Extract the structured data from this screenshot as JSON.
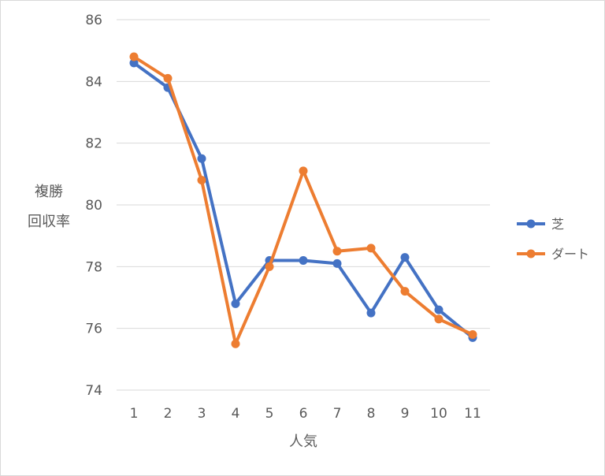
{
  "chart_data": {
    "type": "line",
    "xlabel": "人気",
    "ylabel_lines": [
      "複勝",
      "回収率"
    ],
    "x": [
      "1",
      "2",
      "3",
      "4",
      "5",
      "6",
      "7",
      "8",
      "9",
      "10",
      "11"
    ],
    "ylim": [
      74,
      86
    ],
    "yticks": [
      74,
      76,
      78,
      80,
      82,
      84,
      86
    ],
    "grid": true,
    "legend_position": "right",
    "series": [
      {
        "name": "芝",
        "color": "#4472C4",
        "values": [
          84.6,
          83.8,
          81.5,
          76.8,
          78.2,
          78.2,
          78.1,
          76.5,
          78.3,
          76.6,
          75.7
        ]
      },
      {
        "name": "ダート",
        "color": "#ED7D31",
        "values": [
          84.8,
          84.1,
          80.8,
          75.5,
          78.0,
          81.1,
          78.5,
          78.6,
          77.2,
          76.3,
          75.8
        ]
      }
    ]
  }
}
